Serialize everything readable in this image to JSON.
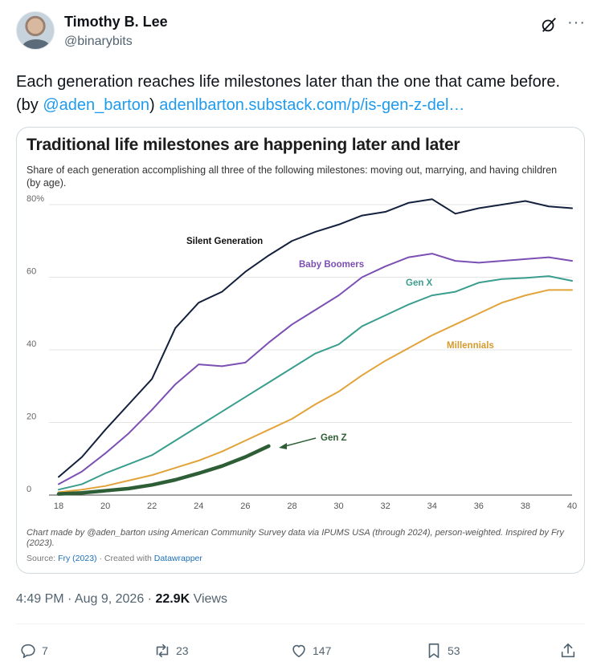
{
  "author": {
    "name": "Timothy B. Lee",
    "handle": "@binarybits"
  },
  "header": {
    "grok_icon": "grok-slash-icon",
    "more_icon": "more-horizontal-icon",
    "more_glyph": "···"
  },
  "tweet": {
    "text_before": "Each generation reaches life milestones later than the one that came before. (by ",
    "mention": "@aden_barton",
    "text_middle": ") ",
    "link": "adenlbarton.substack.com/p/is-gen-z-del…"
  },
  "chart_data": {
    "type": "line",
    "title": "Traditional life milestones are happening later and later",
    "subtitle": "Share of each generation accomplishing all three of the following milestones: moving out, marrying, and having children (by age).",
    "xlim": [
      18,
      40
    ],
    "ylim": [
      0,
      80
    ],
    "x_ticks": [
      18,
      20,
      22,
      24,
      26,
      28,
      30,
      32,
      34,
      36,
      38,
      40
    ],
    "y_ticks": [
      0,
      20,
      40,
      60,
      80
    ],
    "y_tick_labels": [
      "0",
      "20",
      "40",
      "60",
      "80%"
    ],
    "grid": true,
    "series": [
      {
        "name": "Silent Generation",
        "color": "#14213d",
        "x": [
          18,
          19,
          20,
          21,
          22,
          23,
          24,
          25,
          26,
          27,
          28,
          29,
          30,
          31,
          32,
          33,
          34,
          35,
          36,
          37,
          38,
          39,
          40
        ],
        "y": [
          5,
          10.5,
          18,
          25,
          32,
          46,
          53,
          56,
          61.5,
          66,
          70,
          72.5,
          74.5,
          77,
          78,
          80.5,
          81.5,
          77.5,
          79,
          80,
          81,
          79.5,
          79
        ]
      },
      {
        "name": "Baby Boomers",
        "color": "#7b4fb3",
        "x": [
          18,
          19,
          20,
          21,
          22,
          23,
          24,
          25,
          26,
          27,
          28,
          29,
          30,
          31,
          32,
          33,
          34,
          35,
          36,
          37,
          38,
          39,
          40
        ],
        "y": [
          3,
          6.5,
          11.5,
          17,
          23.5,
          30.5,
          36,
          35.5,
          36.5,
          42,
          47,
          51,
          55,
          60,
          63,
          65.5,
          66.5,
          64.5,
          64,
          64.5,
          65,
          65.5,
          64.5
        ]
      },
      {
        "name": "Gen X",
        "color": "#3a9e8f",
        "x": [
          18,
          19,
          20,
          21,
          22,
          23,
          24,
          25,
          26,
          27,
          28,
          29,
          30,
          31,
          32,
          33,
          34,
          35,
          36,
          37,
          38,
          39,
          40
        ],
        "y": [
          1.5,
          3,
          6,
          8.5,
          11,
          15,
          19,
          23,
          27,
          31,
          35,
          39,
          41.5,
          46.5,
          49.5,
          52.5,
          55,
          56,
          58.5,
          59.5,
          59.8,
          60.3,
          59
        ]
      },
      {
        "name": "Millennials",
        "color": "#e2a33b",
        "x": [
          18,
          19,
          20,
          21,
          22,
          23,
          24,
          25,
          26,
          27,
          28,
          29,
          30,
          31,
          32,
          33,
          34,
          35,
          36,
          37,
          38,
          39,
          40
        ],
        "y": [
          0.8,
          1.5,
          2.5,
          4,
          5.5,
          7.5,
          9.5,
          12,
          15,
          18,
          21,
          25,
          28.5,
          33,
          37,
          40.5,
          44,
          47,
          50,
          53,
          55,
          56.5,
          56.5
        ]
      },
      {
        "name": "Gen Z",
        "color": "#2e5e35",
        "x": [
          18,
          19,
          20,
          21,
          22,
          23,
          24,
          25,
          26,
          27
        ],
        "y": [
          0.3,
          0.6,
          1.2,
          1.8,
          2.8,
          4.2,
          6,
          8,
          10.5,
          13.5
        ]
      }
    ],
    "annotations": [
      {
        "text": "Silent Generation",
        "color": "#111111"
      },
      {
        "text": "Baby Boomers",
        "color": "#7b4fb3"
      },
      {
        "text": "Gen X",
        "color": "#3a9e8f"
      },
      {
        "text": "Millennials",
        "color": "#d69a2d"
      },
      {
        "text": "Gen Z",
        "color": "#2e5e35"
      }
    ],
    "note": "Chart made by @aden_barton using American Community Survey data via IPUMS USA (through 2024), person-weighted. Inspired by Fry (2023).",
    "source_prefix": "Source: ",
    "source_link": "Fry (2023)",
    "source_mid": " · Created with ",
    "source_tool": "Datawrapper"
  },
  "meta": {
    "time": "4:49 PM · Aug 9, 2026 · ",
    "views_count": "22.9K",
    "views_label": " Views"
  },
  "actions": {
    "reply": {
      "icon": "reply-icon",
      "count": "7"
    },
    "repost": {
      "icon": "repost-icon",
      "count": "23"
    },
    "like": {
      "icon": "heart-icon",
      "count": "147"
    },
    "bookmark": {
      "icon": "bookmark-icon",
      "count": "53"
    },
    "share": {
      "icon": "share-icon"
    }
  }
}
